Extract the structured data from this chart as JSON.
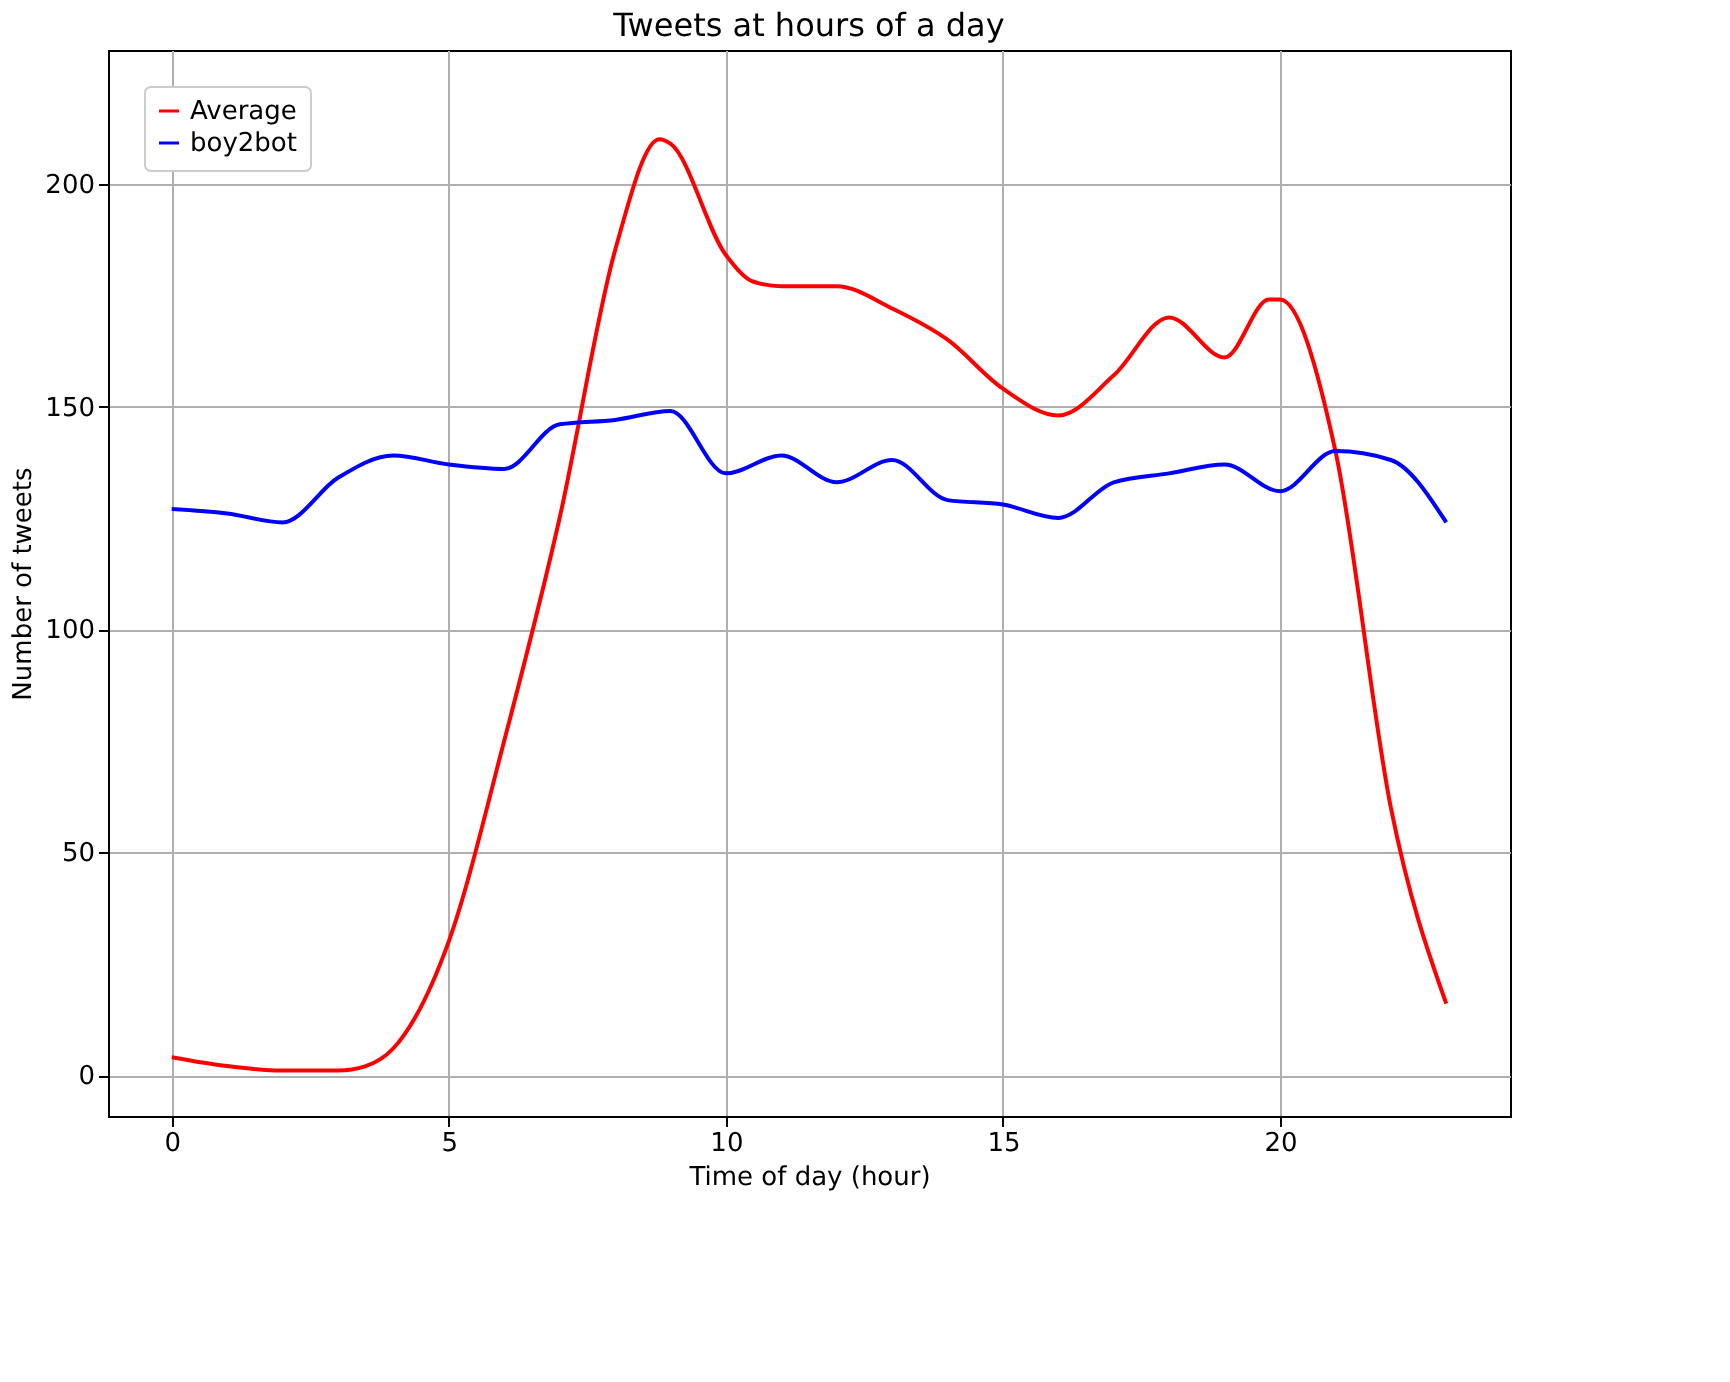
{
  "chart_data": {
    "type": "line",
    "title": "Tweets at hours of a day",
    "xlabel": "Time of day (hour)",
    "ylabel": "Number of tweets",
    "xlim": [
      -1.15,
      24.15
    ],
    "ylim": [
      -9.2,
      230
    ],
    "xticks": [
      0,
      5,
      10,
      15,
      20
    ],
    "yticks": [
      0,
      50,
      100,
      150,
      200
    ],
    "grid": true,
    "legend": "top left",
    "line_style": "solid",
    "series": [
      {
        "name": "Average",
        "color": "#ff0000",
        "x": [
          0,
          1,
          2,
          3,
          3.5,
          4,
          5,
          6,
          7,
          8,
          8.8,
          9,
          10,
          10.5,
          11,
          12,
          13,
          14,
          15,
          16,
          17,
          18,
          19,
          19.8,
          20,
          21,
          22,
          23
        ],
        "values": [
          4,
          2,
          1,
          1,
          2,
          6,
          30,
          75,
          125,
          185,
          210,
          209,
          184,
          178,
          177,
          177,
          172,
          165,
          154,
          148,
          157,
          170,
          161,
          174,
          174,
          140,
          60,
          16
        ]
      },
      {
        "name": "boy2bot",
        "color": "#0000ff",
        "x": [
          0,
          1,
          2,
          3,
          4,
          5,
          6,
          7,
          8,
          9,
          10,
          11,
          12,
          13,
          14,
          15,
          16,
          17,
          18,
          19,
          20,
          21,
          22,
          23
        ],
        "values": [
          127,
          126,
          124,
          134,
          139,
          137,
          136,
          146,
          147,
          149,
          135,
          139,
          133,
          138,
          129,
          128,
          125,
          133,
          135,
          137,
          131,
          140,
          138,
          124
        ]
      }
    ]
  }
}
